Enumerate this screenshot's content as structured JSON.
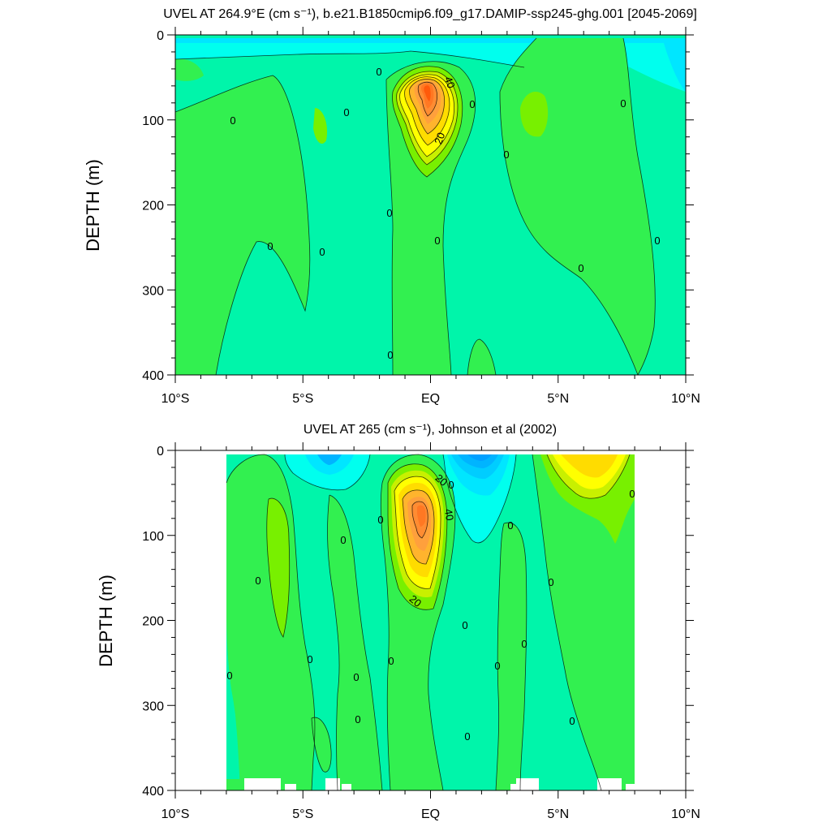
{
  "chart_data": [
    {
      "type": "contour",
      "title": "UVEL AT 264.9°E (cm s⁻¹), b.e21.B1850cmip6.f09_g17.DAMIP-ssp245-ghg.001 [2045-2069]",
      "ylabel": "DEPTH (m)",
      "xlabel": "",
      "xlim": [
        -10,
        10
      ],
      "ylim": [
        0,
        400
      ],
      "y_inverted": true,
      "x_ticks": [
        {
          "value": -10,
          "label": "10°S"
        },
        {
          "value": -5,
          "label": "5°S"
        },
        {
          "value": 0,
          "label": "EQ"
        },
        {
          "value": 5,
          "label": "5°N"
        },
        {
          "value": 10,
          "label": "10°N"
        }
      ],
      "y_ticks": [
        0,
        100,
        200,
        300,
        400
      ],
      "contour_interval": 5,
      "contour_labels": [
        "40",
        "20",
        "0",
        "0",
        "0",
        "0",
        "0",
        "0",
        "0",
        "0",
        "0",
        "0",
        "0",
        "0",
        "0",
        "0"
      ],
      "data_x_range": [
        -10,
        10
      ],
      "data_y_range": [
        5,
        400
      ],
      "features": [
        {
          "kind": "eastward_undercurrent_core",
          "x": 0.0,
          "depth": 65,
          "max_level": 55
        },
        {
          "kind": "westward_surface_flow",
          "x_range": [
            -10,
            10
          ],
          "depth_range": [
            0,
            30
          ]
        },
        {
          "kind": "eastward_band",
          "x": -7.5,
          "depth": 200
        },
        {
          "kind": "eastward_band",
          "x": 4.5,
          "depth": 150
        }
      ]
    },
    {
      "type": "contour",
      "title": "UVEL AT 265 (cm s⁻¹), Johnson et al (2002)",
      "ylabel": "DEPTH (m)",
      "xlabel": "",
      "xlim": [
        -10,
        10
      ],
      "ylim": [
        0,
        400
      ],
      "y_inverted": true,
      "x_ticks": [
        {
          "value": -10,
          "label": "10°S"
        },
        {
          "value": -5,
          "label": "5°S"
        },
        {
          "value": 0,
          "label": "EQ"
        },
        {
          "value": 5,
          "label": "5°N"
        },
        {
          "value": 10,
          "label": "10°N"
        }
      ],
      "y_ticks": [
        0,
        100,
        200,
        300,
        400
      ],
      "contour_interval": 5,
      "contour_labels": [
        "20",
        "40",
        "20",
        "0",
        "0",
        "0",
        "0",
        "0",
        "0",
        "0",
        "0",
        "0",
        "0",
        "0",
        "0",
        "0",
        "0",
        "0",
        "0",
        "0",
        "0"
      ],
      "data_x_range": [
        -8,
        8
      ],
      "data_y_range": [
        5,
        400
      ],
      "features": [
        {
          "kind": "eastward_undercurrent_core",
          "x": -0.1,
          "depth": 65,
          "max_level": 45
        },
        {
          "kind": "eastward_surface_jet",
          "x": 6.5,
          "depth": 20,
          "max_level": 25
        },
        {
          "kind": "westward_surface_flow",
          "x": -4.0,
          "depth": 10,
          "min_level": -20
        },
        {
          "kind": "westward_surface_flow",
          "x": 2.0,
          "depth": 10,
          "min_level": -25
        }
      ]
    }
  ],
  "colorbar": {
    "levels": [
      -30,
      -25,
      -20,
      -15,
      -10,
      -5,
      0,
      5,
      10,
      15,
      20,
      25,
      30,
      35,
      40,
      45,
      50,
      55
    ],
    "colors": [
      "#00a0ff",
      "#00b4ff",
      "#00cdff",
      "#00e6ff",
      "#00ffee",
      "#00fac8",
      "#00f5aa",
      "#32f050",
      "#78f000",
      "#c8f000",
      "#ffff00",
      "#ffdc00",
      "#ffb42d",
      "#ffa03c",
      "#ff8c32",
      "#ff7823",
      "#ff5a0a",
      "#ff3200"
    ]
  }
}
